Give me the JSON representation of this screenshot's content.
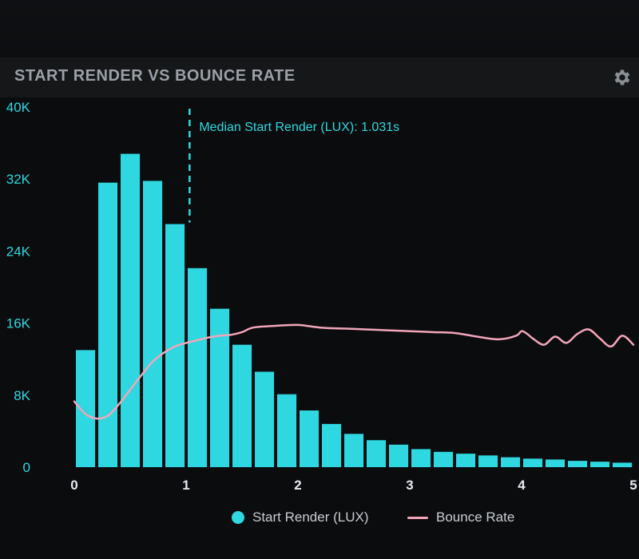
{
  "header": {
    "title": "START RENDER VS BOUNCE RATE",
    "settings_icon": "gear-icon"
  },
  "colors": {
    "background": "#0b0c0e",
    "bar": "#2fd7e0",
    "line": "#f2a6b8",
    "axis_text": "#2fd7e0",
    "annotation": "#2fd7e0"
  },
  "chart_data": {
    "type": "bar",
    "title": "START RENDER VS BOUNCE RATE",
    "xlabel": "",
    "ylabel": "",
    "xlim": [
      0,
      5
    ],
    "ylim": [
      0,
      40000
    ],
    "x_ticks": [
      "0",
      "1",
      "2",
      "3",
      "4",
      "5"
    ],
    "y_ticks": [
      "0",
      "8K",
      "16K",
      "24K",
      "32K",
      "40K"
    ],
    "grid": false,
    "legend_position": "bottom",
    "series": [
      {
        "name": "Start Render (LUX)",
        "type": "bar",
        "x": [
          0.2,
          0.4,
          0.6,
          0.8,
          1.0,
          1.2,
          1.4,
          1.6,
          1.8,
          2.0,
          2.2,
          2.4,
          2.6,
          2.8,
          3.0,
          3.2,
          3.4,
          3.6,
          3.8,
          4.0,
          4.2,
          4.4,
          4.6,
          4.8,
          5.0
        ],
        "values": [
          13000,
          31600,
          34800,
          31800,
          27000,
          22100,
          17600,
          13600,
          10600,
          8100,
          6300,
          4800,
          3700,
          3000,
          2500,
          2000,
          1700,
          1500,
          1300,
          1100,
          950,
          850,
          700,
          600,
          500
        ]
      },
      {
        "name": "Bounce Rate",
        "type": "line",
        "x": [
          0,
          0.1,
          0.2,
          0.3,
          0.4,
          0.5,
          0.6,
          0.7,
          0.8,
          0.9,
          1.0,
          1.1,
          1.2,
          1.3,
          1.4,
          1.5,
          1.6,
          1.8,
          2.0,
          2.2,
          2.4,
          2.6,
          2.8,
          3.0,
          3.2,
          3.4,
          3.6,
          3.8,
          3.95,
          4.0,
          4.05,
          4.1,
          4.2,
          4.3,
          4.4,
          4.5,
          4.6,
          4.7,
          4.8,
          4.9,
          5.0
        ],
        "values": [
          7300,
          5900,
          5400,
          5700,
          7000,
          8600,
          10200,
          11700,
          12700,
          13400,
          13800,
          14100,
          14400,
          14600,
          14700,
          15000,
          15500,
          15700,
          15800,
          15500,
          15400,
          15300,
          15200,
          15100,
          15000,
          14900,
          14500,
          14200,
          14600,
          15100,
          14800,
          14300,
          13600,
          14500,
          13800,
          14800,
          15300,
          14300,
          13400,
          14600,
          13600
        ]
      }
    ],
    "annotations": [
      {
        "type": "vline",
        "x": 1.031,
        "label": "Median Start Render (LUX): 1.031s"
      }
    ]
  }
}
